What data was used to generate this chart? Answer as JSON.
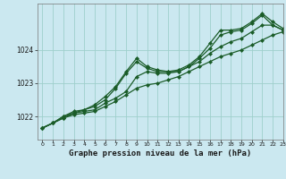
{
  "title": "Graphe pression niveau de la mer (hPa)",
  "bg_color": "#cbe8f0",
  "grid_color": "#9ecfcc",
  "line_color": "#1a5c28",
  "xlim": [
    -0.5,
    23
  ],
  "ylim": [
    1021.3,
    1025.4
  ],
  "yticks": [
    1022,
    1023,
    1024
  ],
  "xticks": [
    0,
    1,
    2,
    3,
    4,
    5,
    6,
    7,
    8,
    9,
    10,
    11,
    12,
    13,
    14,
    15,
    16,
    17,
    18,
    19,
    20,
    21,
    22,
    23
  ],
  "series": [
    [
      1021.65,
      1021.8,
      1021.95,
      1022.05,
      1022.1,
      1022.15,
      1022.3,
      1022.45,
      1022.65,
      1022.85,
      1022.95,
      1023.0,
      1023.1,
      1023.2,
      1023.35,
      1023.5,
      1023.65,
      1023.8,
      1023.9,
      1024.0,
      1024.15,
      1024.3,
      1024.45,
      1024.55
    ],
    [
      1021.65,
      1021.8,
      1021.95,
      1022.1,
      1022.15,
      1022.2,
      1022.4,
      1022.55,
      1022.75,
      1023.2,
      1023.35,
      1023.3,
      1023.3,
      1023.35,
      1023.5,
      1023.65,
      1023.9,
      1024.1,
      1024.25,
      1024.35,
      1024.55,
      1024.75,
      1024.75,
      1024.6
    ],
    [
      1021.65,
      1021.8,
      1022.0,
      1022.1,
      1022.2,
      1022.3,
      1022.5,
      1022.85,
      1023.3,
      1023.65,
      1023.45,
      1023.35,
      1023.35,
      1023.35,
      1023.5,
      1023.75,
      1024.05,
      1024.45,
      1024.55,
      1024.6,
      1024.8,
      1025.05,
      1024.75,
      1024.6
    ],
    [
      1021.65,
      1021.8,
      1022.0,
      1022.15,
      1022.2,
      1022.35,
      1022.6,
      1022.9,
      1023.35,
      1023.75,
      1023.5,
      1023.4,
      1023.35,
      1023.4,
      1023.55,
      1023.8,
      1024.2,
      1024.6,
      1024.6,
      1024.65,
      1024.85,
      1025.1,
      1024.85,
      1024.65
    ]
  ]
}
